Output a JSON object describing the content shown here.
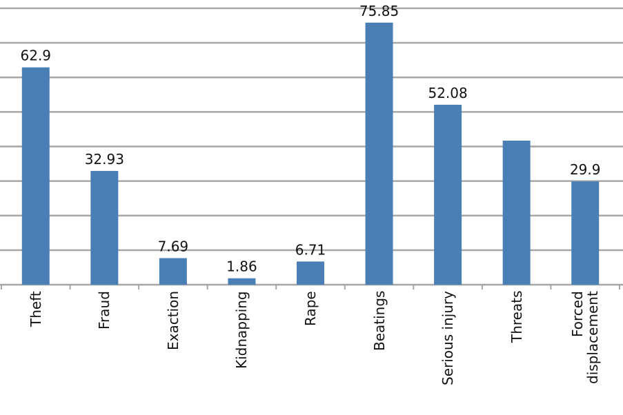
{
  "chart_data": {
    "type": "bar",
    "categories": [
      "Theft",
      "Fraud",
      "Exaction",
      "Kidnapping",
      "Rape",
      "Beatings",
      "Serious injury",
      "Threats",
      "Forced displacement"
    ],
    "values": [
      62.9,
      32.93,
      7.69,
      1.86,
      6.71,
      75.85,
      52.08,
      41.7,
      29.9
    ],
    "value_labels": [
      "62.9",
      "32.93",
      "7.69",
      "1.86",
      "6.71",
      "75.85",
      "52.08",
      null,
      "29.9"
    ],
    "color": "#4a7fb6",
    "ylim": [
      0,
      80
    ],
    "yticks": [
      0,
      10,
      20,
      30,
      40,
      50,
      60,
      70,
      80
    ],
    "grid": true
  }
}
